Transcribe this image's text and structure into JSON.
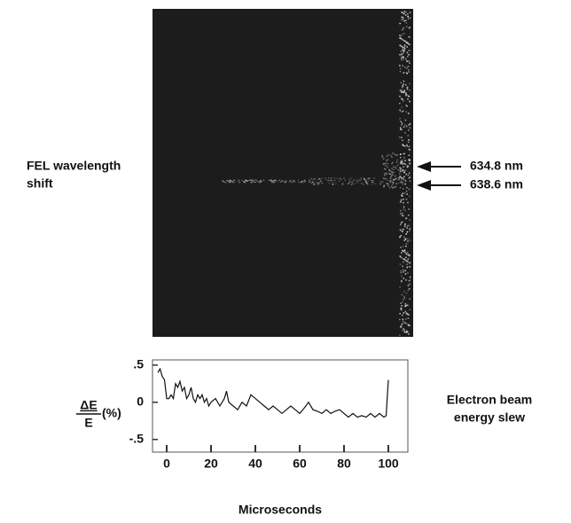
{
  "figure": {
    "label_lines": [
      "FEL wavelength",
      "shift"
    ],
    "markers": [
      "634.8 nm",
      "638.6 nm"
    ]
  },
  "chart_data": {
    "type": "line",
    "y_label": {
      "numerator": "ΔE",
      "denominator": "E",
      "unit": "(%)"
    },
    "annotation_lines": [
      "Electron beam",
      "energy slew"
    ],
    "x_label": "Microseconds",
    "x": [
      -4,
      -3,
      -2,
      -1,
      0,
      1,
      2,
      3,
      4,
      5,
      6,
      7,
      8,
      9,
      10,
      11,
      12,
      13,
      14,
      15,
      16,
      17,
      18,
      19,
      20,
      22,
      24,
      26,
      27,
      28,
      30,
      32,
      34,
      36,
      38,
      40,
      42,
      44,
      46,
      48,
      50,
      52,
      54,
      56,
      58,
      60,
      62,
      64,
      66,
      68,
      70,
      72,
      74,
      76,
      78,
      80,
      82,
      84,
      86,
      88,
      90,
      92,
      94,
      96,
      98,
      99,
      100
    ],
    "series": [
      {
        "color": "#111111",
        "values": [
          0.4,
          0.45,
          0.35,
          0.3,
          0.05,
          0.05,
          0.1,
          0.05,
          0.25,
          0.2,
          0.28,
          0.15,
          0.2,
          0.05,
          0.1,
          0.2,
          0.05,
          0.0,
          0.1,
          0.05,
          0.1,
          0.0,
          0.05,
          -0.05,
          0.0,
          0.05,
          -0.05,
          0.05,
          0.15,
          0.0,
          -0.05,
          -0.1,
          0.0,
          -0.05,
          0.1,
          0.05,
          0.0,
          -0.05,
          -0.1,
          -0.05,
          -0.1,
          -0.15,
          -0.1,
          -0.05,
          -0.1,
          -0.15,
          -0.08,
          0.0,
          -0.1,
          -0.12,
          -0.15,
          -0.1,
          -0.15,
          -0.12,
          -0.1,
          -0.15,
          -0.2,
          -0.15,
          -0.2,
          -0.18,
          -0.2,
          -0.15,
          -0.2,
          -0.15,
          -0.2,
          -0.18,
          0.3
        ]
      }
    ],
    "xlim": [
      -6.4,
      108.8
    ],
    "xticks": [
      0,
      20,
      40,
      60,
      80,
      100
    ],
    "ylim": [
      -0.67,
      0.57
    ],
    "yticks": [
      {
        "value": 0.5,
        "label": ".5"
      },
      0,
      {
        "value": -0.5,
        "label": "-.5"
      }
    ]
  }
}
